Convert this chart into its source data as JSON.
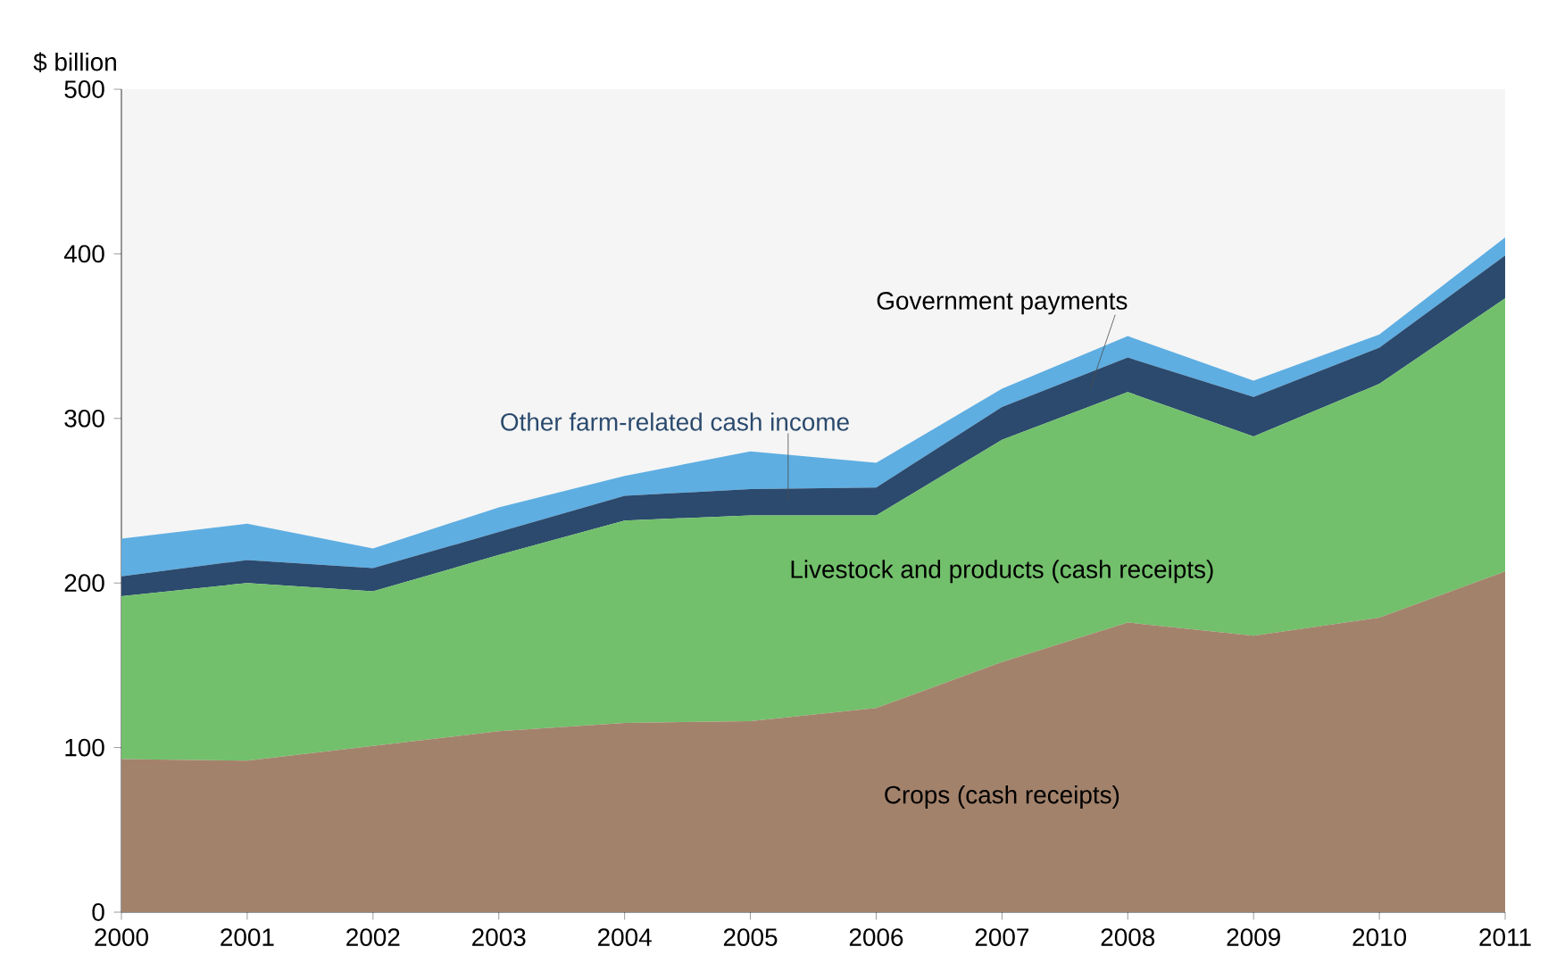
{
  "chart_data": {
    "type": "area",
    "stacked": true,
    "ylabel": "$ billion",
    "x": [
      2000,
      2001,
      2002,
      2003,
      2004,
      2005,
      2006,
      2007,
      2008,
      2009,
      2010,
      2011
    ],
    "series": [
      {
        "name": "Crops (cash receipts)",
        "color": "#a3826b",
        "values": [
          93,
          92,
          101,
          110,
          115,
          116,
          124,
          152,
          176,
          168,
          179,
          207
        ]
      },
      {
        "name": "Livestock and products (cash receipts)",
        "color": "#72c06b",
        "values": [
          99,
          108,
          94,
          107,
          123,
          125,
          117,
          135,
          140,
          121,
          142,
          166
        ]
      },
      {
        "name": "Other farm-related cash income",
        "color": "#2b4a6d",
        "values": [
          12,
          14,
          14,
          14,
          15,
          16,
          17,
          20,
          21,
          24,
          22,
          26
        ]
      },
      {
        "name": "Government payments",
        "color": "#5eaee2",
        "values": [
          23,
          22,
          12,
          15,
          12,
          23,
          15,
          11,
          13,
          10,
          8,
          11
        ]
      }
    ],
    "xlim": [
      2000,
      2011
    ],
    "ylim": [
      0,
      500
    ],
    "xticks": [
      2000,
      2001,
      2002,
      2003,
      2004,
      2005,
      2006,
      2007,
      2008,
      2009,
      2010,
      2011
    ],
    "yticks": [
      0,
      100,
      200,
      300,
      400,
      500
    ],
    "grid": false,
    "legend": false
  }
}
